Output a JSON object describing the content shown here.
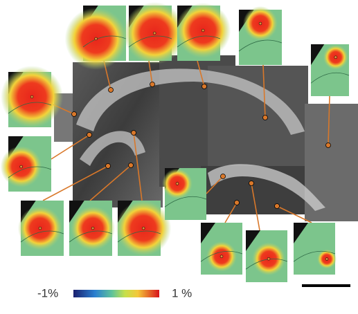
{
  "colorbar": {
    "min_label": "-1%",
    "max_label": "1 %"
  }
}
